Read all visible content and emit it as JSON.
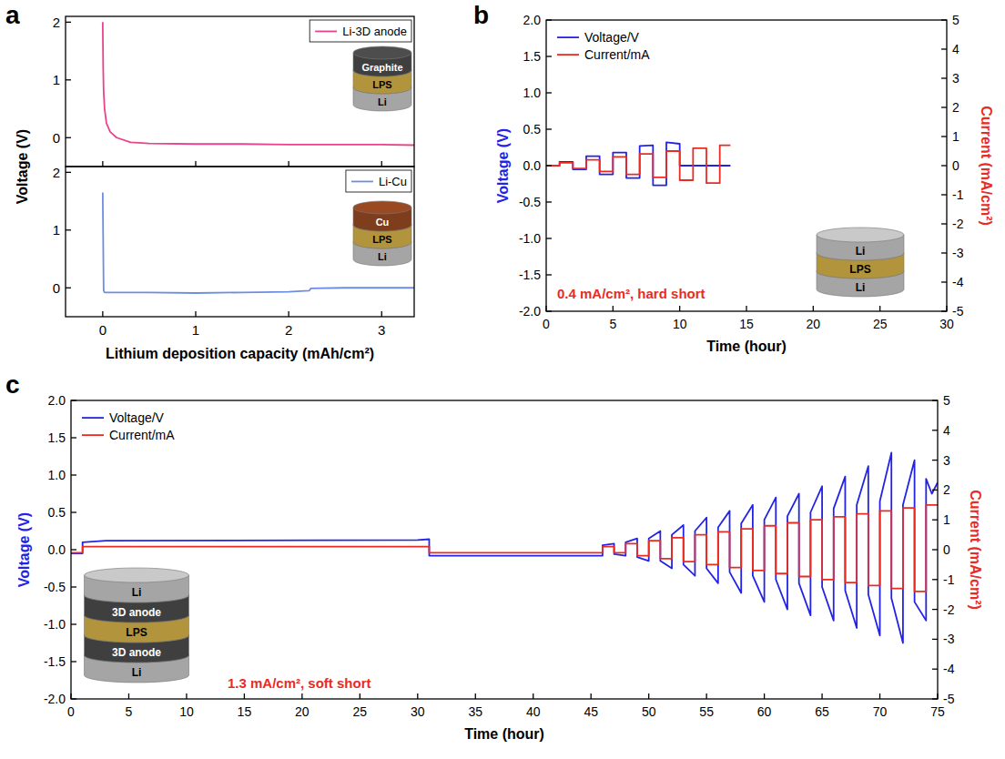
{
  "chart_data": [
    {
      "panel": "a",
      "type": "line",
      "xlabel": "Lithium deposition capacity (mAh/cm²)",
      "ylabel": "Voltage (V)",
      "xlim": [
        -0.4,
        3.35
      ],
      "xticks": [
        0,
        1,
        2,
        3
      ],
      "subplots": [
        {
          "ylim": [
            -0.5,
            2.1
          ],
          "yticks": [
            0,
            1,
            2
          ],
          "legend": "upper right",
          "tick_labels": "y",
          "series": [
            {
              "name": "Li-3D anode",
              "color": "#e8448e",
              "x": [
                0,
                0.005,
                0.01,
                0.02,
                0.04,
                0.08,
                0.15,
                0.3,
                0.5,
                1,
                1.5,
                2,
                2.5,
                3,
                3.35
              ],
              "values": [
                2,
                1.2,
                0.8,
                0.5,
                0.25,
                0.1,
                0.0,
                -0.08,
                -0.1,
                -0.11,
                -0.11,
                -0.12,
                -0.12,
                -0.12,
                -0.13
              ]
            }
          ],
          "inset": [
            {
              "text": "Graphite",
              "color": "#4d4d4d"
            },
            {
              "text": "LPS",
              "color": "#d9b44a"
            },
            {
              "text": "Li",
              "color": "#c9c9c9"
            }
          ]
        },
        {
          "ylim": [
            -0.5,
            2.1
          ],
          "yticks": [
            0,
            1,
            2
          ],
          "legend": "upper right",
          "series": [
            {
              "name": "Li-Cu",
              "color": "#6d8ee0",
              "x": [
                0,
                0.01,
                0.02,
                0.5,
                1,
                1.5,
                2,
                2.22,
                2.24,
                2.6,
                3,
                3.35
              ],
              "values": [
                1.65,
                -0.05,
                -0.08,
                -0.08,
                -0.09,
                -0.08,
                -0.07,
                -0.05,
                -0.01,
                0,
                0,
                0
              ]
            }
          ],
          "inset": [
            {
              "text": "Cu",
              "color": "#9a4a22"
            },
            {
              "text": "LPS",
              "color": "#d9b44a"
            },
            {
              "text": "Li",
              "color": "#c9c9c9"
            }
          ]
        }
      ]
    },
    {
      "panel": "b",
      "type": "line",
      "xlabel": "Time (hour)",
      "ylabel": "Voltage (V)",
      "y2label": "Current (mA/cm²)",
      "xlim": [
        0,
        30
      ],
      "xticks": [
        0,
        5,
        10,
        15,
        20,
        25,
        30
      ],
      "ylim": [
        -2,
        2
      ],
      "yticks": [
        {
          "value": -2,
          "label": "-2.0"
        },
        -1.5,
        {
          "value": -1,
          "label": "-1.0"
        },
        -0.5,
        {
          "value": 0,
          "label": "0.0"
        },
        0.5,
        {
          "value": 1,
          "label": "1.0"
        },
        1.5,
        {
          "value": 2,
          "label": "2.0"
        }
      ],
      "y2lim": [
        -5,
        5
      ],
      "y2ticks": [
        -5,
        -4,
        -3,
        -2,
        -1,
        0,
        1,
        2,
        3,
        4,
        5
      ],
      "legend": "upper left",
      "annotations": [
        "0.4 mA/cm², hard short"
      ],
      "series": [
        {
          "name": "Voltage/V",
          "color": "#2323e6",
          "x": [
            0,
            1,
            1,
            2,
            2,
            3,
            3,
            4,
            4,
            5,
            5,
            6,
            6,
            7,
            7,
            8,
            8,
            9,
            9,
            10,
            10,
            13.8
          ],
          "values": [
            0,
            0,
            0.05,
            0.05,
            -0.05,
            -0.05,
            0.13,
            0.13,
            -0.12,
            -0.12,
            0.18,
            0.18,
            -0.17,
            -0.17,
            0.27,
            0.28,
            -0.27,
            -0.27,
            0.32,
            0.3,
            0,
            0
          ]
        },
        {
          "name": "Current/mA",
          "color": "#e82c24",
          "axis": "y2",
          "x": [
            0,
            1,
            1,
            2,
            2,
            3,
            3,
            4,
            4,
            5,
            5,
            6,
            6,
            7,
            7,
            8,
            8,
            9,
            9,
            10,
            10,
            11,
            11,
            12,
            12,
            13,
            13,
            13.8
          ],
          "values": [
            0,
            0,
            0.1,
            0.1,
            -0.1,
            -0.1,
            0.2,
            0.2,
            -0.2,
            -0.2,
            0.3,
            0.3,
            -0.3,
            -0.3,
            0.4,
            0.4,
            -0.4,
            -0.4,
            0.5,
            0.5,
            -0.5,
            -0.5,
            0.6,
            0.6,
            -0.6,
            -0.6,
            0.7,
            0.7
          ]
        }
      ],
      "inset": [
        {
          "text": "Li",
          "color": "#c9c9c9"
        },
        {
          "text": "LPS",
          "color": "#d9b44a"
        },
        {
          "text": "Li",
          "color": "#c9c9c9"
        }
      ]
    },
    {
      "panel": "c",
      "type": "line",
      "xlabel": "Time (hour)",
      "ylabel": "Voltage (V)",
      "y2label": "Current (mA/cm²)",
      "xlim": [
        0,
        75
      ],
      "xticks": [
        0,
        5,
        10,
        15,
        20,
        25,
        30,
        35,
        40,
        45,
        50,
        55,
        60,
        65,
        70,
        75
      ],
      "ylim": [
        -2,
        2
      ],
      "yticks": [
        {
          "value": -2,
          "label": "-2.0"
        },
        -1.5,
        {
          "value": -1,
          "label": "-1.0"
        },
        -0.5,
        {
          "value": 0,
          "label": "0.0"
        },
        0.5,
        {
          "value": 1,
          "label": "1.0"
        },
        1.5,
        {
          "value": 2,
          "label": "2.0"
        }
      ],
      "y2lim": [
        -5,
        5
      ],
      "y2ticks": [
        -5,
        -4,
        -3,
        -2,
        -1,
        0,
        1,
        2,
        3,
        4,
        5
      ],
      "legend": "upper left",
      "annotations": [
        "1.3 mA/cm², soft short"
      ],
      "series": [
        {
          "name": "Voltage/V",
          "color": "#2323e6",
          "x": [
            0,
            1,
            1,
            3,
            30,
            31,
            31,
            46,
            46,
            47,
            47,
            48,
            48,
            49,
            49,
            50,
            50,
            51,
            51,
            52,
            52,
            53,
            53,
            54,
            54,
            55,
            55,
            56,
            56,
            57,
            57,
            58,
            58,
            59,
            59,
            60,
            60,
            61,
            61,
            62,
            62,
            63,
            63,
            64,
            64,
            65,
            65,
            66,
            66,
            67,
            67,
            68,
            68,
            69,
            69,
            70,
            70,
            71,
            71,
            72,
            72,
            73,
            73,
            74,
            74,
            74.5,
            75
          ],
          "values": [
            -0.05,
            -0.05,
            0.1,
            0.12,
            0.13,
            0.14,
            -0.08,
            -0.08,
            0.06,
            0.08,
            -0.06,
            -0.08,
            0.1,
            0.15,
            -0.1,
            -0.15,
            0.15,
            0.25,
            -0.15,
            -0.25,
            0.2,
            0.33,
            -0.2,
            -0.35,
            0.25,
            0.43,
            -0.25,
            -0.45,
            0.3,
            0.52,
            -0.3,
            -0.58,
            0.35,
            0.6,
            -0.35,
            -0.7,
            0.4,
            0.7,
            -0.4,
            -0.8,
            0.45,
            0.75,
            -0.45,
            -0.88,
            0.5,
            0.85,
            -0.5,
            -0.95,
            0.55,
            0.98,
            -0.55,
            -1.05,
            0.6,
            1.12,
            -0.6,
            -1.15,
            0.65,
            1.3,
            -0.65,
            -1.25,
            0.6,
            1.2,
            -0.7,
            -0.95,
            0.95,
            0.75,
            0.9
          ]
        },
        {
          "name": "Current/mA",
          "color": "#e82c24",
          "axis": "y2",
          "x": [
            0,
            1,
            1,
            31,
            31,
            46,
            46,
            47,
            47,
            48,
            48,
            49,
            49,
            50,
            50,
            51,
            51,
            52,
            52,
            53,
            53,
            54,
            54,
            55,
            55,
            56,
            56,
            57,
            57,
            58,
            58,
            59,
            59,
            60,
            60,
            61,
            61,
            62,
            62,
            63,
            63,
            64,
            64,
            65,
            65,
            66,
            66,
            67,
            67,
            68,
            68,
            69,
            69,
            70,
            70,
            71,
            71,
            72,
            72,
            73,
            73,
            74,
            74,
            75
          ],
          "values": [
            -0.1,
            -0.1,
            0.1,
            0.1,
            -0.1,
            -0.1,
            0.1,
            0.1,
            -0.1,
            -0.1,
            0.2,
            0.2,
            -0.2,
            -0.2,
            0.3,
            0.3,
            -0.3,
            -0.3,
            0.4,
            0.4,
            -0.4,
            -0.4,
            0.5,
            0.5,
            -0.5,
            -0.5,
            0.6,
            0.6,
            -0.6,
            -0.6,
            0.7,
            0.7,
            -0.7,
            -0.7,
            0.8,
            0.8,
            -0.8,
            -0.8,
            0.9,
            0.9,
            -0.9,
            -0.9,
            1,
            1,
            -1,
            -1,
            1.1,
            1.1,
            -1.1,
            -1.1,
            1.2,
            1.2,
            -1.2,
            -1.2,
            1.3,
            1.3,
            -1.3,
            -1.3,
            1.4,
            1.4,
            -1.4,
            -1.4,
            1.5,
            1.5
          ]
        }
      ],
      "inset": [
        {
          "text": "Li",
          "color": "#c9c9c9"
        },
        {
          "text": "3D anode",
          "color": "#4d4d4d"
        },
        {
          "text": "LPS",
          "color": "#d9b44a"
        },
        {
          "text": "3D anode",
          "color": "#4d4d4d"
        },
        {
          "text": "Li",
          "color": "#c9c9c9"
        }
      ]
    }
  ]
}
